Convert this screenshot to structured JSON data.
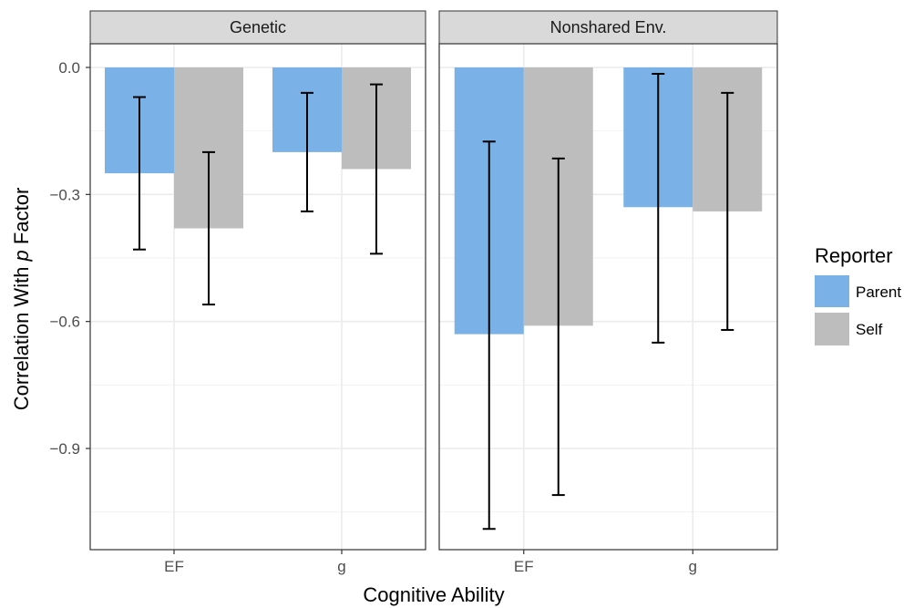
{
  "chart_data": {
    "type": "bar",
    "xlabel": "Cognitive Ability",
    "ylabel_prefix": "Correlation With ",
    "ylabel_italic": "p",
    "ylabel_suffix": " Factor",
    "ylim": [
      -1.14,
      0.06
    ],
    "yticks": [
      0.0,
      -0.3,
      -0.6,
      -0.9
    ],
    "ytick_labels": [
      "0.0",
      "−0.3",
      "−0.6",
      "−0.9"
    ],
    "categories": [
      "EF",
      "g"
    ],
    "grid": true,
    "legend": {
      "title": "Reporter",
      "position": "right",
      "entries": [
        {
          "label": "Parent",
          "color": "#7ab2e8"
        },
        {
          "label": "Self",
          "color": "#bdbdbd"
        }
      ]
    },
    "panels": [
      {
        "label": "Genetic",
        "series": [
          {
            "name": "Parent",
            "values": [
              -0.25,
              -0.2
            ],
            "ci_low": [
              -0.43,
              -0.34
            ],
            "ci_high": [
              -0.07,
              -0.06
            ]
          },
          {
            "name": "Self",
            "values": [
              -0.38,
              -0.24
            ],
            "ci_low": [
              -0.56,
              -0.44
            ],
            "ci_high": [
              -0.2,
              -0.04
            ]
          }
        ]
      },
      {
        "label": "Nonshared Env.",
        "series": [
          {
            "name": "Parent",
            "values": [
              -0.63,
              -0.33
            ],
            "ci_low": [
              -1.09,
              -0.65
            ],
            "ci_high": [
              -0.175,
              -0.015
            ]
          },
          {
            "name": "Self",
            "values": [
              -0.61,
              -0.34
            ],
            "ci_low": [
              -1.01,
              -0.62
            ],
            "ci_high": [
              -0.215,
              -0.06
            ]
          }
        ]
      }
    ]
  }
}
